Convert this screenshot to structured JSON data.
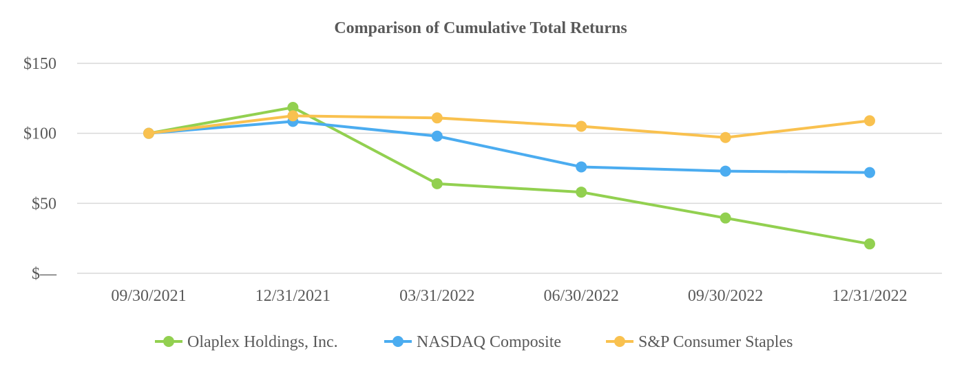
{
  "chart_data": {
    "type": "line",
    "title": "Comparison of Cumulative Total Returns",
    "xlabel": "",
    "ylabel": "",
    "categories": [
      "09/30/2021",
      "12/31/2021",
      "03/31/2022",
      "06/30/2022",
      "09/30/2022",
      "12/31/2022"
    ],
    "ylim": [
      0,
      150
    ],
    "yticks": [
      0,
      50,
      100,
      150
    ],
    "ytick_labels": [
      "$—",
      "$50",
      "$100",
      "$150"
    ],
    "grid": true,
    "legend_position": "bottom",
    "series": [
      {
        "name": "Olaplex Holdings, Inc.",
        "color": "#92d050",
        "values": [
          100,
          118.5,
          64,
          58,
          39.5,
          21
        ]
      },
      {
        "name": "NASDAQ Composite",
        "color": "#4bacf0",
        "values": [
          100,
          108.5,
          98,
          76,
          73,
          72
        ]
      },
      {
        "name": "S&P Consumer Staples",
        "color": "#f9c14f",
        "values": [
          100,
          112.5,
          111,
          105,
          97,
          109
        ]
      }
    ]
  }
}
